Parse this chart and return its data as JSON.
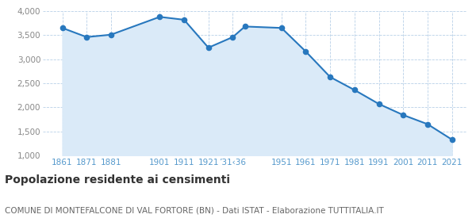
{
  "years": [
    1861,
    1871,
    1881,
    1901,
    1911,
    1921,
    1931,
    1936,
    1951,
    1961,
    1971,
    1981,
    1991,
    2001,
    2011,
    2021
  ],
  "population": [
    3650,
    3460,
    3510,
    3880,
    3820,
    3240,
    3460,
    3680,
    3650,
    3160,
    2630,
    2360,
    2070,
    1840,
    1650,
    1330
  ],
  "ylim": [
    1000,
    4000
  ],
  "yticks": [
    1000,
    1500,
    2000,
    2500,
    3000,
    3500,
    4000
  ],
  "line_color": "#2878be",
  "fill_color": "#daeaf8",
  "marker_color": "#2878be",
  "grid_color": "#b8d0e8",
  "background_color": "#ffffff",
  "title": "Popolazione residente ai censimenti",
  "subtitle": "COMUNE DI MONTEFALCONE DI VAL FORTORE (BN) - Dati ISTAT - Elaborazione TUTTITALIA.IT",
  "title_fontsize": 10,
  "subtitle_fontsize": 7.5,
  "tick_label_color": "#5599cc",
  "ytick_label_color": "#888888",
  "x_positions": [
    1861,
    1871,
    1881,
    1901,
    1911,
    1921,
    1931,
    1951,
    1961,
    1971,
    1981,
    1991,
    2001,
    2011,
    2021
  ],
  "x_labels": [
    "1861",
    "1871",
    "1881",
    "1901",
    "1911",
    "1921",
    "’31‹36",
    "1951",
    "1961",
    "1971",
    "1981",
    "1991",
    "2001",
    "2011",
    "2021"
  ]
}
